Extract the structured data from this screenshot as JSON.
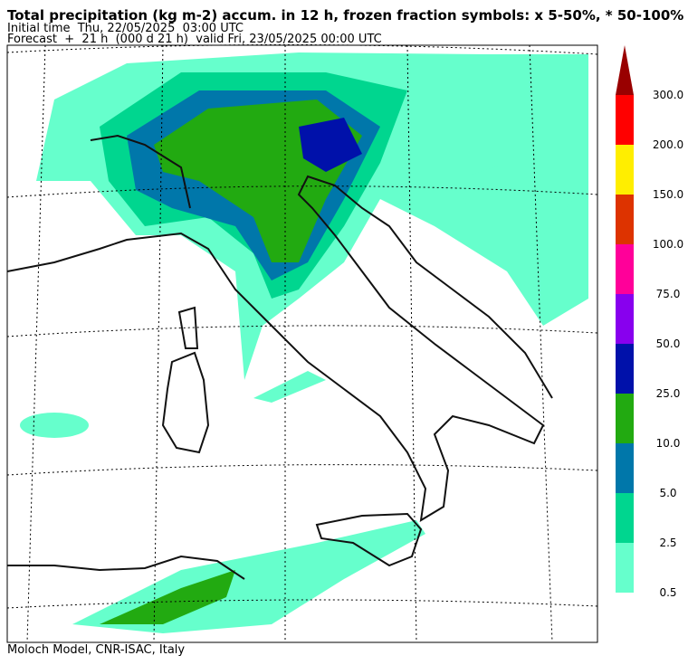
{
  "header": {
    "title": "Total precipitation (kg m-2) accum. in 12 h, frozen fraction symbols: x 5-50%, * 50-100%",
    "initial": "Initial time  Thu, 22/05/2025  03:00 UTC",
    "forecast": "Forecast  +  21 h  (000 d 21 h)  valid Fri, 23/05/2025 00:00 UTC"
  },
  "colorbar": {
    "labels": [
      "0.5",
      "2.5",
      "5.0",
      "10.0",
      "25.0",
      "50.0",
      "75.0",
      "100.0",
      "150.0",
      "200.0",
      "300.0"
    ],
    "colors": [
      "#66ffcc",
      "#00d68f",
      "#0077aa",
      "#22aa11",
      "#0011aa",
      "#8800ee",
      "#ff0099",
      "#dd3300",
      "#ffee00",
      "#ff0000",
      "#990000"
    ]
  },
  "footer": "Moloch Model, CNR-ISAC, Italy"
}
